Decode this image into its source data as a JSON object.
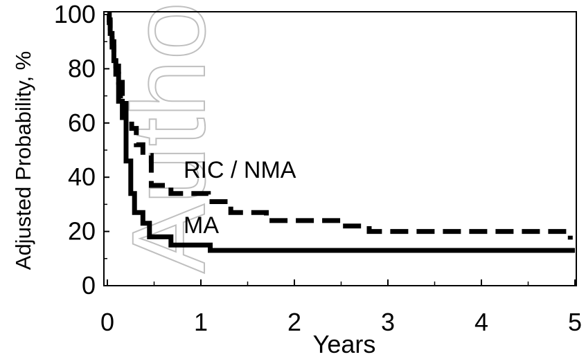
{
  "watermark": "Author M",
  "chart_data": {
    "type": "line",
    "xlabel": "Years",
    "ylabel": "Adjusted Probability, %",
    "xlim": [
      0,
      5
    ],
    "ylim": [
      0,
      100
    ],
    "xticks": [
      0,
      1,
      2,
      3,
      4,
      5
    ],
    "yticks": [
      0,
      20,
      40,
      60,
      80,
      100
    ],
    "grid": false,
    "legend": "inline labels",
    "series": [
      {
        "name": "RIC / NMA",
        "style": "dashed",
        "color": "#000000",
        "x": [
          0,
          0.02,
          0.03,
          0.05,
          0.07,
          0.09,
          0.12,
          0.16,
          0.2,
          0.26,
          0.31,
          0.38,
          0.47,
          0.55,
          0.68,
          0.88,
          1.08,
          1.18,
          1.32,
          1.55,
          1.7,
          2.0,
          2.5,
          2.8,
          3.0,
          4.5,
          4.95
        ],
        "y": [
          100,
          98,
          95,
          90,
          85,
          81,
          75,
          70,
          62,
          58,
          52,
          48,
          37,
          37,
          34,
          34,
          31,
          31,
          27,
          27,
          24,
          24,
          22,
          20,
          20,
          20,
          17
        ]
      },
      {
        "name": "MA",
        "style": "solid",
        "color": "#000000",
        "x": [
          0,
          0.02,
          0.03,
          0.05,
          0.07,
          0.09,
          0.12,
          0.16,
          0.2,
          0.25,
          0.29,
          0.38,
          0.45,
          0.55,
          0.68,
          0.85,
          1.1,
          1.5,
          2.0,
          3.0,
          4.0,
          5.0
        ],
        "y": [
          100,
          97,
          93,
          88,
          83,
          78,
          68,
          62,
          46,
          34,
          27,
          23,
          18,
          18,
          15,
          15,
          13,
          13,
          13,
          13,
          13,
          13
        ]
      }
    ]
  }
}
